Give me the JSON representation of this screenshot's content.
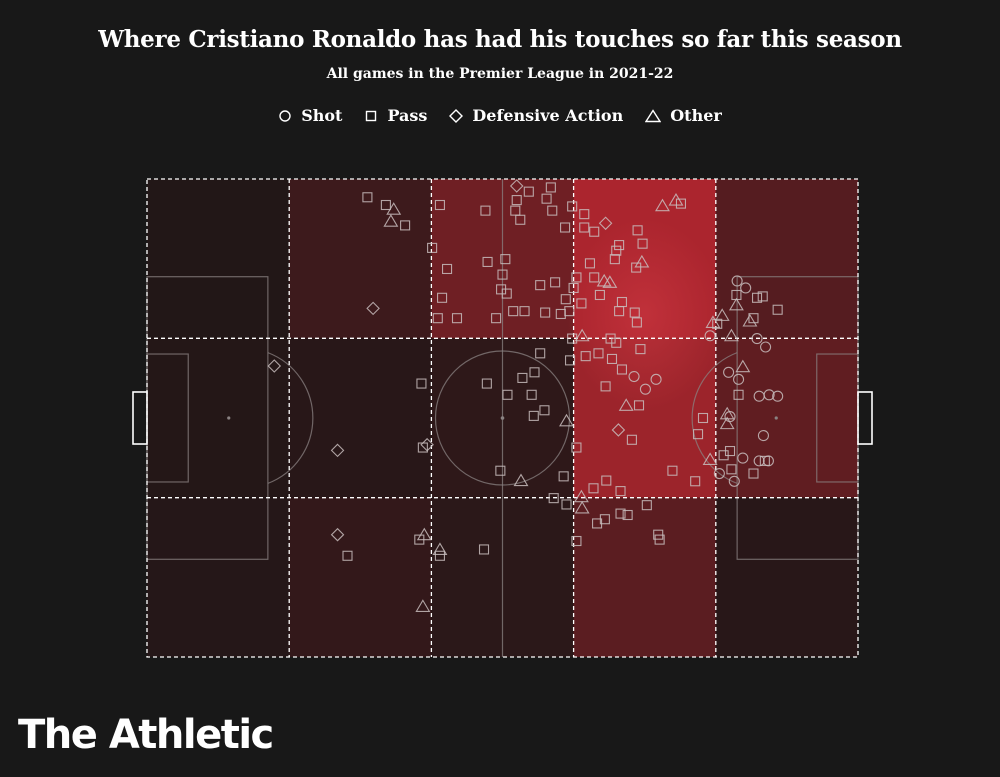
{
  "title": "Where Cristiano Ronaldo has had his touches so far this season",
  "subtitle": "All games in the Premier League in 2021-22",
  "legend": [
    {
      "symbol": "circle",
      "label": "Shot"
    },
    {
      "symbol": "square",
      "label": "Pass"
    },
    {
      "symbol": "diamond",
      "label": "Defensive Action"
    },
    {
      "symbol": "triangle",
      "label": "Other"
    }
  ],
  "branding": {
    "logo": "The Athletic"
  },
  "colors": {
    "background": "#181818",
    "heat_high": "#b3262f",
    "heat_low": "#1c1616",
    "marker_stroke": "#c8bdbd",
    "grid": "#ffffff"
  },
  "chart_data": {
    "type": "heatmap",
    "direction": "attacking left to right",
    "zones_x": 5,
    "zones_y": 3,
    "intensity": [
      [
        0.04,
        0.22,
        0.55,
        0.95,
        0.38
      ],
      [
        0.05,
        0.08,
        0.12,
        0.85,
        0.45
      ],
      [
        0.06,
        0.15,
        0.1,
        0.42,
        0.08
      ]
    ],
    "events": [
      {
        "t": "square",
        "x": 31,
        "y": 2.6
      },
      {
        "t": "square",
        "x": 33.6,
        "y": 3.7
      },
      {
        "t": "triangle",
        "x": 34.7,
        "y": 4.3
      },
      {
        "t": "triangle",
        "x": 34.3,
        "y": 6.0
      },
      {
        "t": "square",
        "x": 36.3,
        "y": 6.6
      },
      {
        "t": "diamond",
        "x": 31.8,
        "y": 18.4
      },
      {
        "t": "square",
        "x": 41.2,
        "y": 3.7
      },
      {
        "t": "square",
        "x": 40.1,
        "y": 9.8
      },
      {
        "t": "square",
        "x": 42.2,
        "y": 12.8
      },
      {
        "t": "square",
        "x": 41.5,
        "y": 16.9
      },
      {
        "t": "square",
        "x": 40.9,
        "y": 19.8
      },
      {
        "t": "square",
        "x": 43.6,
        "y": 19.8
      },
      {
        "t": "square",
        "x": 47.6,
        "y": 4.5
      },
      {
        "t": "square",
        "x": 47.9,
        "y": 11.8
      },
      {
        "t": "square",
        "x": 49.1,
        "y": 19.8
      },
      {
        "t": "square",
        "x": 51.5,
        "y": 18.8
      },
      {
        "t": "square",
        "x": 49.8,
        "y": 15.7
      },
      {
        "t": "square",
        "x": 50.0,
        "y": 13.6
      },
      {
        "t": "square",
        "x": 50.4,
        "y": 11.4
      },
      {
        "t": "square",
        "x": 50.6,
        "y": 16.3
      },
      {
        "t": "square",
        "x": 51.8,
        "y": 4.5
      },
      {
        "t": "square",
        "x": 52.0,
        "y": 3.0
      },
      {
        "t": "diamond",
        "x": 52.0,
        "y": 1.0
      },
      {
        "t": "square",
        "x": 53.7,
        "y": 1.8
      },
      {
        "t": "square",
        "x": 52.5,
        "y": 5.8
      },
      {
        "t": "square",
        "x": 53.1,
        "y": 18.8
      },
      {
        "t": "square",
        "x": 56.8,
        "y": 1.2
      },
      {
        "t": "square",
        "x": 56.2,
        "y": 2.8
      },
      {
        "t": "square",
        "x": 57.0,
        "y": 4.5
      },
      {
        "t": "square",
        "x": 59.8,
        "y": 3.9
      },
      {
        "t": "square",
        "x": 58.8,
        "y": 6.9
      },
      {
        "t": "square",
        "x": 61.5,
        "y": 5.0
      },
      {
        "t": "square",
        "x": 61.5,
        "y": 6.9
      },
      {
        "t": "diamond",
        "x": 64.5,
        "y": 6.3
      },
      {
        "t": "square",
        "x": 62.9,
        "y": 7.5
      },
      {
        "t": "square",
        "x": 66.4,
        "y": 9.4
      },
      {
        "t": "square",
        "x": 66.0,
        "y": 10.2
      },
      {
        "t": "square",
        "x": 65.8,
        "y": 11.4
      },
      {
        "t": "square",
        "x": 62.3,
        "y": 12.0
      },
      {
        "t": "square",
        "x": 60.4,
        "y": 14.0
      },
      {
        "t": "square",
        "x": 62.9,
        "y": 14.0
      },
      {
        "t": "square",
        "x": 60.0,
        "y": 15.5
      },
      {
        "t": "square",
        "x": 58.9,
        "y": 17.1
      },
      {
        "t": "square",
        "x": 61.1,
        "y": 17.7
      },
      {
        "t": "square",
        "x": 59.4,
        "y": 18.8
      },
      {
        "t": "square",
        "x": 55.3,
        "y": 15.1
      },
      {
        "t": "square",
        "x": 57.4,
        "y": 14.7
      },
      {
        "t": "square",
        "x": 58.2,
        "y": 19.2
      },
      {
        "t": "triangle",
        "x": 64.3,
        "y": 14.5
      },
      {
        "t": "triangle",
        "x": 65.1,
        "y": 14.7
      },
      {
        "t": "square",
        "x": 63.7,
        "y": 16.5
      },
      {
        "t": "square",
        "x": 66.8,
        "y": 17.5
      },
      {
        "t": "square",
        "x": 66.4,
        "y": 18.8
      },
      {
        "t": "square",
        "x": 56.0,
        "y": 19.0
      },
      {
        "t": "triangle",
        "x": 72.5,
        "y": 3.8
      },
      {
        "t": "triangle",
        "x": 74.4,
        "y": 3.0
      },
      {
        "t": "square",
        "x": 75.1,
        "y": 3.5
      },
      {
        "t": "circle",
        "x": 83.0,
        "y": 14.5
      },
      {
        "t": "circle",
        "x": 84.2,
        "y": 15.5
      },
      {
        "t": "square",
        "x": 82.9,
        "y": 16.5
      },
      {
        "t": "square",
        "x": 85.8,
        "y": 16.9
      },
      {
        "t": "triangle",
        "x": 82.9,
        "y": 17.9
      },
      {
        "t": "square",
        "x": 85.3,
        "y": 19.8
      },
      {
        "t": "triangle",
        "x": 84.8,
        "y": 20.2
      },
      {
        "t": "triangle",
        "x": 80.9,
        "y": 19.4
      },
      {
        "t": "square",
        "x": 80.2,
        "y": 20.6
      },
      {
        "t": "triangle",
        "x": 79.6,
        "y": 20.4
      },
      {
        "t": "square",
        "x": 88.7,
        "y": 18.6
      },
      {
        "t": "square",
        "x": 86.6,
        "y": 16.7
      },
      {
        "t": "square",
        "x": 69.0,
        "y": 7.3
      },
      {
        "t": "square",
        "x": 69.7,
        "y": 9.2
      },
      {
        "t": "triangle",
        "x": 69.6,
        "y": 11.8
      },
      {
        "t": "square",
        "x": 68.8,
        "y": 12.6
      },
      {
        "t": "square",
        "x": 68.6,
        "y": 19.0
      },
      {
        "t": "square",
        "x": 68.9,
        "y": 20.4
      },
      {
        "t": "circle",
        "x": 79.2,
        "y": 22.3
      },
      {
        "t": "triangle",
        "x": 82.2,
        "y": 22.3
      },
      {
        "t": "circle",
        "x": 85.8,
        "y": 22.7
      },
      {
        "t": "circle",
        "x": 87.0,
        "y": 23.9
      },
      {
        "t": "circle",
        "x": 81.8,
        "y": 27.5
      },
      {
        "t": "circle",
        "x": 83.2,
        "y": 28.5
      },
      {
        "t": "triangle",
        "x": 83.8,
        "y": 26.7
      },
      {
        "t": "square",
        "x": 83.2,
        "y": 30.7
      },
      {
        "t": "circle",
        "x": 86.1,
        "y": 30.9
      },
      {
        "t": "circle",
        "x": 87.5,
        "y": 30.7
      },
      {
        "t": "circle",
        "x": 88.7,
        "y": 30.9
      },
      {
        "t": "circle",
        "x": 82.0,
        "y": 33.8
      },
      {
        "t": "triangle",
        "x": 81.6,
        "y": 33.4
      },
      {
        "t": "triangle",
        "x": 81.6,
        "y": 34.8
      },
      {
        "t": "square",
        "x": 78.2,
        "y": 34.0
      },
      {
        "t": "square",
        "x": 77.5,
        "y": 36.3
      },
      {
        "t": "circle",
        "x": 86.7,
        "y": 36.5
      },
      {
        "t": "square",
        "x": 82.0,
        "y": 38.7
      },
      {
        "t": "circle",
        "x": 83.8,
        "y": 39.7
      },
      {
        "t": "circle",
        "x": 86.1,
        "y": 40.1
      },
      {
        "t": "circle",
        "x": 87.4,
        "y": 40.1
      },
      {
        "t": "square",
        "x": 81.1,
        "y": 39.3
      },
      {
        "t": "triangle",
        "x": 79.2,
        "y": 39.9
      },
      {
        "t": "square",
        "x": 77.1,
        "y": 43.0
      },
      {
        "t": "circle",
        "x": 82.6,
        "y": 43.0
      },
      {
        "t": "square",
        "x": 85.3,
        "y": 41.9
      },
      {
        "t": "square",
        "x": 86.9,
        "y": 40.1
      },
      {
        "t": "square",
        "x": 59.8,
        "y": 22.7
      },
      {
        "t": "triangle",
        "x": 61.2,
        "y": 22.3
      },
      {
        "t": "square",
        "x": 65.2,
        "y": 22.7
      },
      {
        "t": "square",
        "x": 66.0,
        "y": 23.3
      },
      {
        "t": "square",
        "x": 63.5,
        "y": 24.8
      },
      {
        "t": "square",
        "x": 69.4,
        "y": 24.2
      },
      {
        "t": "square",
        "x": 65.4,
        "y": 25.6
      },
      {
        "t": "square",
        "x": 61.7,
        "y": 25.2
      },
      {
        "t": "square",
        "x": 66.8,
        "y": 27.1
      },
      {
        "t": "circle",
        "x": 68.5,
        "y": 28.1
      },
      {
        "t": "square",
        "x": 64.5,
        "y": 29.5
      },
      {
        "t": "circle",
        "x": 70.1,
        "y": 29.9
      },
      {
        "t": "triangle",
        "x": 67.4,
        "y": 32.2
      },
      {
        "t": "square",
        "x": 69.2,
        "y": 32.2
      },
      {
        "t": "circle",
        "x": 71.6,
        "y": 28.5
      },
      {
        "t": "triangle",
        "x": 59.0,
        "y": 34.4
      },
      {
        "t": "diamond",
        "x": 66.3,
        "y": 35.7
      },
      {
        "t": "square",
        "x": 68.2,
        "y": 37.1
      },
      {
        "t": "square",
        "x": 60.4,
        "y": 38.2
      },
      {
        "t": "square",
        "x": 59.5,
        "y": 25.8
      },
      {
        "t": "square",
        "x": 55.3,
        "y": 24.8
      },
      {
        "t": "square",
        "x": 54.5,
        "y": 27.5
      },
      {
        "t": "square",
        "x": 54.1,
        "y": 30.7
      },
      {
        "t": "square",
        "x": 55.9,
        "y": 32.9
      },
      {
        "t": "square",
        "x": 54.4,
        "y": 33.7
      },
      {
        "t": "square",
        "x": 52.8,
        "y": 28.3
      },
      {
        "t": "square",
        "x": 47.8,
        "y": 29.1
      },
      {
        "t": "square",
        "x": 50.7,
        "y": 30.7
      },
      {
        "t": "square",
        "x": 38.6,
        "y": 29.1
      },
      {
        "t": "diamond",
        "x": 39.4,
        "y": 37.8
      },
      {
        "t": "square",
        "x": 38.8,
        "y": 38.2
      },
      {
        "t": "diamond",
        "x": 26.8,
        "y": 38.6
      },
      {
        "t": "diamond",
        "x": 17.9,
        "y": 26.6
      },
      {
        "t": "square",
        "x": 49.7,
        "y": 41.5
      },
      {
        "t": "triangle",
        "x": 52.6,
        "y": 42.9
      },
      {
        "t": "square",
        "x": 47.4,
        "y": 52.7
      },
      {
        "t": "triangle",
        "x": 39.0,
        "y": 50.6
      },
      {
        "t": "square",
        "x": 38.3,
        "y": 51.3
      },
      {
        "t": "triangle",
        "x": 41.2,
        "y": 52.7
      },
      {
        "t": "square",
        "x": 41.2,
        "y": 53.6
      },
      {
        "t": "triangle",
        "x": 38.8,
        "y": 60.8
      },
      {
        "t": "diamond",
        "x": 26.8,
        "y": 50.6
      },
      {
        "t": "square",
        "x": 28.2,
        "y": 53.6
      },
      {
        "t": "square",
        "x": 58.6,
        "y": 42.3
      },
      {
        "t": "square",
        "x": 57.2,
        "y": 45.4
      },
      {
        "t": "triangle",
        "x": 61.1,
        "y": 45.2
      },
      {
        "t": "triangle",
        "x": 61.2,
        "y": 46.8
      },
      {
        "t": "square",
        "x": 59.0,
        "y": 46.3
      },
      {
        "t": "square",
        "x": 62.8,
        "y": 44.0
      },
      {
        "t": "square",
        "x": 64.6,
        "y": 42.9
      },
      {
        "t": "square",
        "x": 66.6,
        "y": 44.4
      },
      {
        "t": "square",
        "x": 66.6,
        "y": 47.6
      },
      {
        "t": "square",
        "x": 67.6,
        "y": 47.8
      },
      {
        "t": "square",
        "x": 63.3,
        "y": 49.0
      },
      {
        "t": "square",
        "x": 64.4,
        "y": 48.4
      },
      {
        "t": "square",
        "x": 70.3,
        "y": 46.4
      },
      {
        "t": "square",
        "x": 71.9,
        "y": 50.6
      },
      {
        "t": "square",
        "x": 72.1,
        "y": 51.3
      },
      {
        "t": "square",
        "x": 60.4,
        "y": 51.5
      },
      {
        "t": "square",
        "x": 73.9,
        "y": 41.5
      },
      {
        "t": "circle",
        "x": 80.5,
        "y": 41.9
      },
      {
        "t": "square",
        "x": 82.2,
        "y": 41.3
      }
    ]
  }
}
